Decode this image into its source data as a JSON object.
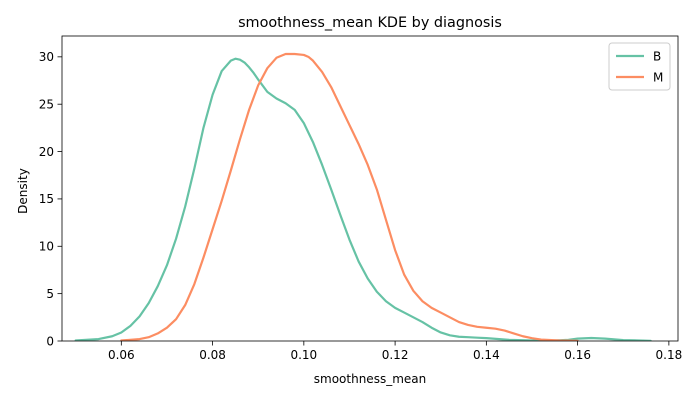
{
  "chart_data": {
    "type": "line",
    "title": "smoothness_mean KDE by diagnosis",
    "xlabel": "smoothness_mean",
    "ylabel": "Density",
    "xlim": [
      0.047,
      0.182
    ],
    "ylim": [
      0,
      32.2
    ],
    "xticks": [
      0.06,
      0.08,
      0.1,
      0.12,
      0.14,
      0.16,
      0.18
    ],
    "xtick_labels": [
      "0.06",
      "0.08",
      "0.10",
      "0.12",
      "0.14",
      "0.16",
      "0.18"
    ],
    "yticks": [
      0,
      5,
      10,
      15,
      20,
      25,
      30
    ],
    "ytick_labels": [
      "0",
      "5",
      "10",
      "15",
      "20",
      "25",
      "30"
    ],
    "grid": false,
    "legend_position": "top-right",
    "series": [
      {
        "name": "B",
        "color": "#66c2a5",
        "x": [
          0.05,
          0.055,
          0.058,
          0.06,
          0.062,
          0.064,
          0.066,
          0.068,
          0.07,
          0.072,
          0.074,
          0.076,
          0.078,
          0.08,
          0.082,
          0.084,
          0.085,
          0.086,
          0.087,
          0.088,
          0.089,
          0.09,
          0.092,
          0.094,
          0.096,
          0.098,
          0.1,
          0.102,
          0.104,
          0.106,
          0.108,
          0.11,
          0.112,
          0.114,
          0.116,
          0.118,
          0.12,
          0.122,
          0.124,
          0.126,
          0.128,
          0.13,
          0.132,
          0.134,
          0.136,
          0.138,
          0.14,
          0.145,
          0.15,
          0.155,
          0.158,
          0.16,
          0.163,
          0.166,
          0.17,
          0.176
        ],
        "y": [
          0.05,
          0.2,
          0.5,
          0.9,
          1.6,
          2.6,
          4.0,
          5.8,
          8.0,
          10.8,
          14.2,
          18.2,
          22.5,
          26.0,
          28.5,
          29.6,
          29.8,
          29.7,
          29.4,
          28.9,
          28.3,
          27.6,
          26.3,
          25.6,
          25.1,
          24.4,
          23.0,
          21.0,
          18.6,
          16.0,
          13.3,
          10.7,
          8.4,
          6.6,
          5.2,
          4.2,
          3.5,
          3.0,
          2.5,
          2.0,
          1.4,
          0.9,
          0.6,
          0.45,
          0.4,
          0.35,
          0.3,
          0.12,
          0.05,
          0.05,
          0.12,
          0.25,
          0.32,
          0.25,
          0.1,
          0.02
        ]
      },
      {
        "name": "M",
        "color": "#fc8d62",
        "x": [
          0.06,
          0.064,
          0.066,
          0.068,
          0.07,
          0.072,
          0.074,
          0.076,
          0.078,
          0.08,
          0.082,
          0.084,
          0.086,
          0.088,
          0.09,
          0.092,
          0.094,
          0.096,
          0.098,
          0.1,
          0.101,
          0.102,
          0.104,
          0.106,
          0.108,
          0.11,
          0.112,
          0.114,
          0.116,
          0.118,
          0.12,
          0.122,
          0.124,
          0.126,
          0.128,
          0.13,
          0.132,
          0.134,
          0.136,
          0.138,
          0.14,
          0.142,
          0.144,
          0.146,
          0.148,
          0.15,
          0.152,
          0.156,
          0.16
        ],
        "y": [
          0.05,
          0.2,
          0.4,
          0.8,
          1.4,
          2.3,
          3.8,
          6.0,
          8.8,
          11.8,
          14.8,
          18.0,
          21.3,
          24.4,
          27.0,
          28.8,
          29.9,
          30.3,
          30.3,
          30.2,
          30.0,
          29.6,
          28.4,
          26.8,
          24.8,
          22.8,
          20.8,
          18.6,
          16.0,
          12.8,
          9.6,
          7.0,
          5.3,
          4.2,
          3.5,
          3.0,
          2.5,
          2.0,
          1.7,
          1.5,
          1.4,
          1.3,
          1.1,
          0.8,
          0.5,
          0.3,
          0.15,
          0.05,
          0.01
        ]
      }
    ]
  }
}
